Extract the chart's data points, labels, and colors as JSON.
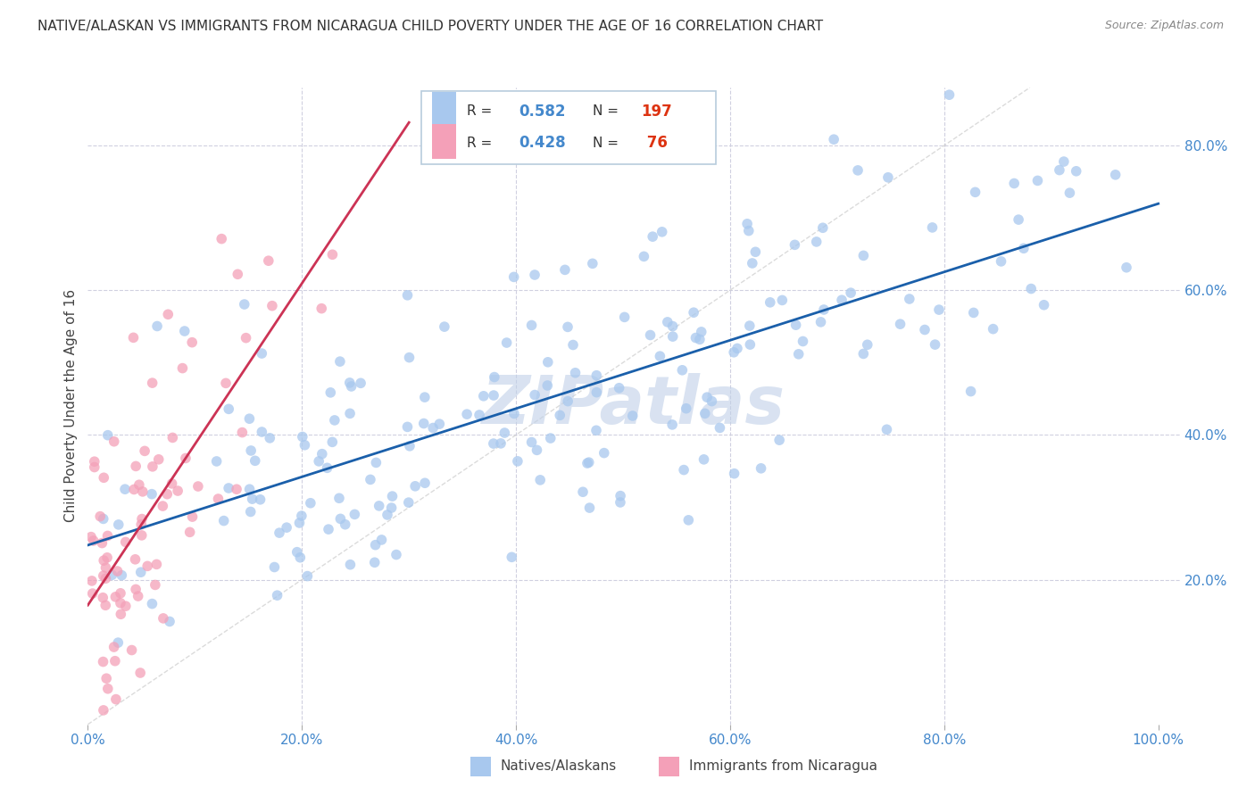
{
  "title": "NATIVE/ALASKAN VS IMMIGRANTS FROM NICARAGUA CHILD POVERTY UNDER THE AGE OF 16 CORRELATION CHART",
  "source": "Source: ZipAtlas.com",
  "ylabel_label": "Child Poverty Under the Age of 16",
  "blue_R": 0.582,
  "blue_N": 197,
  "pink_R": 0.428,
  "pink_N": 76,
  "blue_color": "#a8c8ee",
  "pink_color": "#f4a0b8",
  "blue_line_color": "#1a5faa",
  "pink_line_color": "#cc3355",
  "diag_line_color": "#cccccc",
  "background_color": "#ffffff",
  "grid_color": "#d0d0e0",
  "watermark_color": "#c0d0e8",
  "right_axis_color": "#4488cc",
  "title_color": "#333333",
  "source_color": "#888888",
  "ylim": [
    0.0,
    0.88
  ],
  "xlim": [
    0.0,
    1.02
  ]
}
